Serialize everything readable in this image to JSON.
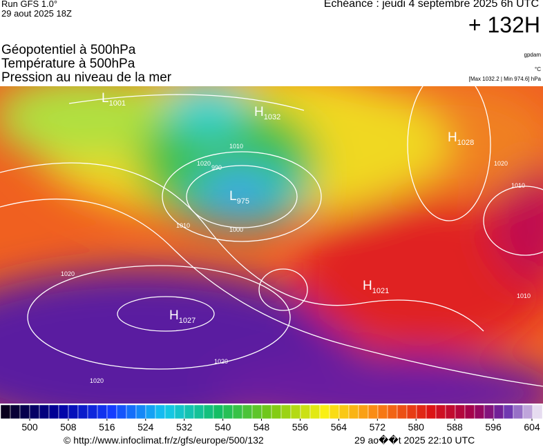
{
  "header": {
    "run": "Run GFS 1.0°",
    "run_date": "29 aout 2025 18Z",
    "valid": "Echéance : jeudi 4 septembre 2025 6h UTC",
    "lead": "+ 132H"
  },
  "layers": [
    "Géopotentiel à 500hPa",
    "Température à 500hPa",
    "Pression au niveau de la mer"
  ],
  "units": {
    "geopotential": "gpdam",
    "temperature": "°C",
    "pressure": "[Max 1032.2 | Min 974.6] hPa"
  },
  "map_labels": [
    {
      "kind": "H",
      "value": "1032"
    },
    {
      "kind": "L",
      "value": "975"
    },
    {
      "kind": "H",
      "value": "1028"
    },
    {
      "kind": "H",
      "value": "1027"
    },
    {
      "kind": "H",
      "value": "1021"
    },
    {
      "kind": "L",
      "value": "1001"
    }
  ],
  "contour_labels": [
    "1020",
    "1010",
    "1000",
    "990",
    "1020",
    "1020",
    "1020",
    "1010",
    "1020",
    "1010",
    "1010"
  ],
  "colorbar": {
    "ticks": [
      500,
      508,
      516,
      524,
      532,
      540,
      548,
      556,
      564,
      572,
      580,
      588,
      596,
      604
    ]
  },
  "footer": {
    "source": "© http://www.infoclimat.fr/z/gfs/europe/500/132",
    "generated": "29 ao��t 2025 22:10 UTC"
  }
}
